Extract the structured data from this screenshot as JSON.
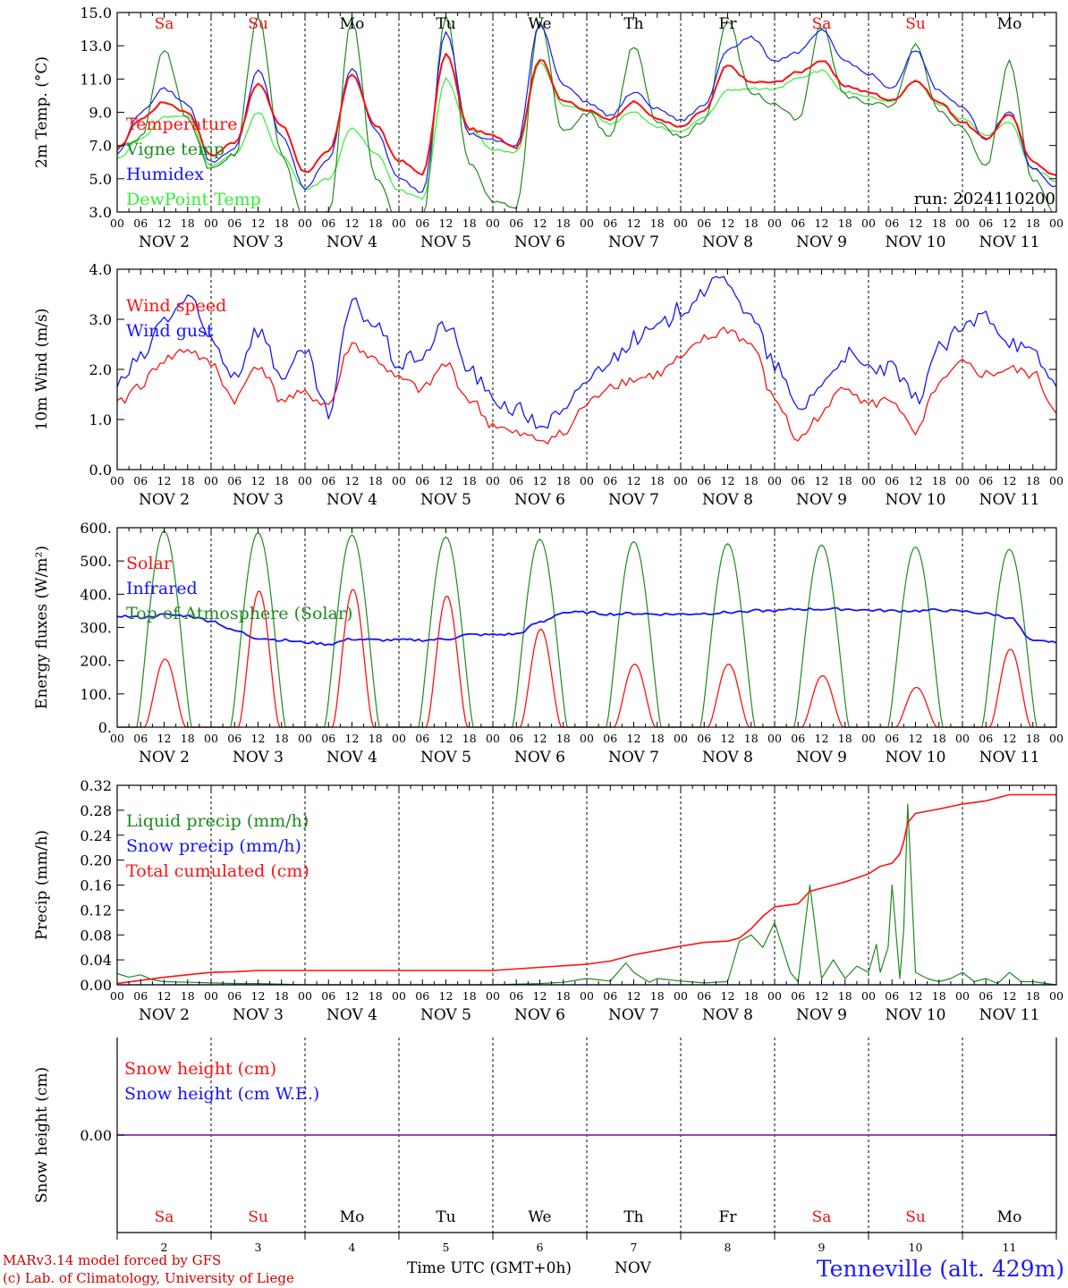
{
  "colors": {
    "red": "#ff1010",
    "darkgreen": "#1f8a1f",
    "blue": "#1414ff",
    "lightgreen": "#33ee33",
    "purple": "#8b2bb0",
    "satsun": "#ee1010",
    "weekday": "#000000"
  },
  "days": [
    {
      "abbr": "Sa",
      "weekend": true,
      "date": "NOV  2",
      "num": "2"
    },
    {
      "abbr": "Su",
      "weekend": true,
      "date": "NOV  3",
      "num": "3"
    },
    {
      "abbr": "Mo",
      "weekend": false,
      "date": "NOV  4",
      "num": "4"
    },
    {
      "abbr": "Tu",
      "weekend": false,
      "date": "NOV  5",
      "num": "5"
    },
    {
      "abbr": "We",
      "weekend": false,
      "date": "NOV  6",
      "num": "6"
    },
    {
      "abbr": "Th",
      "weekend": false,
      "date": "NOV  7",
      "num": "7"
    },
    {
      "abbr": "Fr",
      "weekend": false,
      "date": "NOV  8",
      "num": "8"
    },
    {
      "abbr": "Sa",
      "weekend": true,
      "date": "NOV  9",
      "num": "9"
    },
    {
      "abbr": "Su",
      "weekend": true,
      "date": "NOV 10",
      "num": "10"
    },
    {
      "abbr": "Mo",
      "weekend": false,
      "date": "NOV 11",
      "num": "11"
    }
  ],
  "hour_ticks": [
    "00",
    "06",
    "12",
    "18"
  ],
  "run_label": "run: 2024110200",
  "footer": {
    "credit1": "MARv3.14 model forced by GFS",
    "credit2": "(c) Lab. of Climatology, University of Liege",
    "xtitle": "Time UTC (GMT+0h)",
    "month": "NOV",
    "location": "Tenneville (alt. 429m)"
  },
  "chart_data": [
    {
      "type": "line",
      "ylabel": "2m Temp. (°C)",
      "ylim": [
        3.0,
        15.0
      ],
      "yticks": [
        "3.0",
        "5.0",
        "7.0",
        "9.0",
        "11.0",
        "13.0",
        "15.0"
      ],
      "x_hours": [
        0,
        6,
        12,
        18,
        24,
        30,
        36,
        42,
        48,
        54,
        60,
        66,
        72,
        78,
        84,
        90,
        96,
        102,
        108,
        114,
        120,
        126,
        132,
        138,
        144,
        150,
        156,
        162,
        168,
        174,
        180,
        186,
        192,
        198,
        204,
        210,
        216,
        222,
        228,
        234,
        240
      ],
      "series": [
        {
          "name": "Temperature",
          "color": "red",
          "values": [
            6.8,
            8.6,
            9.6,
            9.0,
            6.4,
            7.2,
            10.7,
            8.2,
            5.4,
            6.6,
            11.3,
            8.2,
            6.1,
            5.3,
            12.5,
            8.0,
            7.6,
            6.9,
            12.2,
            9.7,
            9.1,
            8.6,
            9.6,
            8.6,
            8.1,
            9.1,
            11.8,
            10.8,
            10.8,
            11.4,
            12.1,
            10.6,
            10.2,
            9.7,
            10.9,
            9.6,
            8.4,
            7.4,
            8.9,
            6.0,
            5.2
          ]
        },
        {
          "name": "Vigne temp",
          "color": "darkgreen",
          "values": [
            6.8,
            7.5,
            12.8,
            8.6,
            5.6,
            6.4,
            14.8,
            6.5,
            2.5,
            3.0,
            14.6,
            5.0,
            2.6,
            2.6,
            14.8,
            6.0,
            3.6,
            3.3,
            14.5,
            7.8,
            9.0,
            7.6,
            13.0,
            8.3,
            7.5,
            8.5,
            14.5,
            10.2,
            9.5,
            8.5,
            14.2,
            10.0,
            9.6,
            9.3,
            13.0,
            9.0,
            8.1,
            5.7,
            12.0,
            5.0,
            2.8
          ]
        },
        {
          "name": "Humidex",
          "color": "blue",
          "values": [
            6.5,
            9.0,
            10.4,
            9.5,
            6.0,
            6.8,
            11.5,
            7.6,
            4.4,
            6.2,
            11.7,
            7.9,
            5.0,
            4.2,
            13.9,
            7.7,
            7.3,
            7.0,
            14.3,
            10.7,
            9.6,
            8.8,
            10.2,
            9.2,
            8.5,
            9.4,
            12.8,
            13.5,
            12.1,
            12.6,
            13.9,
            12.1,
            11.3,
            10.4,
            12.7,
            10.3,
            9.3,
            7.4,
            9.0,
            5.6,
            4.5
          ]
        },
        {
          "name": "DewPoint Temp",
          "color": "lightgreen",
          "values": [
            6.2,
            7.4,
            8.7,
            8.8,
            5.8,
            6.4,
            9.0,
            6.4,
            4.4,
            5.0,
            8.0,
            6.6,
            4.3,
            3.8,
            11.0,
            8.0,
            6.7,
            6.6,
            12.0,
            9.4,
            9.1,
            8.3,
            9.0,
            8.1,
            7.8,
            8.7,
            10.3,
            10.4,
            10.4,
            11.1,
            11.5,
            10.2,
            9.9,
            9.6,
            10.9,
            9.5,
            8.6,
            7.6,
            8.4,
            5.6,
            4.9
          ]
        }
      ]
    },
    {
      "type": "line",
      "ylabel": "10m Wind (m/s)",
      "ylim": [
        0.0,
        4.0
      ],
      "yticks": [
        "0.0",
        "1.0",
        "2.0",
        "3.0",
        "4.0"
      ],
      "x_hours": [
        0,
        6,
        12,
        18,
        24,
        30,
        36,
        42,
        48,
        54,
        60,
        66,
        72,
        78,
        84,
        90,
        96,
        102,
        108,
        114,
        120,
        126,
        132,
        138,
        144,
        150,
        156,
        162,
        168,
        174,
        180,
        186,
        192,
        198,
        204,
        210,
        216,
        222,
        228,
        234,
        240
      ],
      "series": [
        {
          "name": "Wind speed",
          "color": "red",
          "values": [
            1.3,
            1.7,
            2.2,
            2.4,
            2.1,
            1.4,
            2.1,
            1.4,
            1.5,
            1.3,
            2.5,
            2.2,
            1.8,
            1.6,
            2.1,
            1.4,
            0.9,
            0.7,
            0.6,
            0.7,
            1.3,
            1.7,
            1.8,
            1.9,
            2.2,
            2.6,
            2.8,
            2.5,
            1.4,
            0.6,
            1.1,
            1.7,
            1.3,
            1.4,
            0.7,
            1.7,
            2.1,
            1.9,
            2.0,
            1.9,
            1.2
          ]
        },
        {
          "name": "Wind gust",
          "color": "blue",
          "values": [
            1.7,
            2.2,
            3.0,
            3.4,
            2.6,
            1.9,
            2.8,
            1.9,
            2.3,
            1.1,
            3.3,
            2.9,
            2.1,
            2.3,
            2.9,
            2.0,
            1.4,
            1.2,
            0.9,
            1.1,
            1.8,
            2.2,
            2.6,
            2.8,
            3.2,
            3.6,
            3.8,
            3.0,
            2.1,
            1.2,
            1.7,
            2.3,
            2.0,
            2.0,
            1.4,
            2.4,
            2.8,
            3.1,
            2.6,
            2.3,
            1.7
          ]
        }
      ]
    },
    {
      "type": "line",
      "ylabel": "Energy fluxes (W/m²)",
      "ylim": [
        0,
        600
      ],
      "yticks": [
        "0.",
        "100.",
        "200.",
        "300.",
        "400.",
        "500.",
        "600."
      ],
      "day_peaks_hour": [
        12,
        36,
        60,
        84,
        108,
        132,
        156,
        180,
        204,
        228
      ],
      "series": [
        {
          "name": "Solar",
          "color": "red",
          "day_peaks": [
            205,
            410,
            415,
            395,
            295,
            190,
            190,
            155,
            120,
            235
          ]
        },
        {
          "name": "Infrared",
          "color": "blue",
          "x_hours": [
            0,
            6,
            12,
            18,
            24,
            30,
            36,
            42,
            48,
            54,
            60,
            66,
            72,
            78,
            84,
            90,
            96,
            102,
            108,
            114,
            120,
            126,
            132,
            138,
            144,
            150,
            156,
            162,
            168,
            174,
            180,
            186,
            192,
            198,
            204,
            210,
            216,
            222,
            228,
            234,
            240
          ],
          "values": [
            335,
            330,
            338,
            335,
            320,
            290,
            268,
            262,
            255,
            250,
            265,
            262,
            262,
            262,
            265,
            278,
            278,
            280,
            315,
            345,
            345,
            340,
            342,
            340,
            340,
            342,
            345,
            350,
            350,
            355,
            355,
            355,
            352,
            350,
            350,
            352,
            348,
            342,
            330,
            258,
            258
          ]
        },
        {
          "name": "Top of Atmosphere (Solar)",
          "color": "darkgreen",
          "day_peaks": [
            590,
            585,
            578,
            572,
            565,
            558,
            552,
            548,
            542,
            535
          ]
        }
      ]
    },
    {
      "type": "line",
      "ylabel": "Precip (mm/h)",
      "ylim": [
        0.0,
        0.32
      ],
      "yticks": [
        "0.00",
        "0.04",
        "0.08",
        "0.12",
        "0.16",
        "0.20",
        "0.24",
        "0.28",
        "0.32"
      ],
      "series": [
        {
          "name": "Liquid precip (mm/h)",
          "color": "darkgreen",
          "x_hours": [
            0,
            3,
            6,
            9,
            12,
            18,
            24,
            30,
            36,
            48,
            60,
            72,
            84,
            96,
            108,
            114,
            120,
            126,
            130,
            132,
            136,
            138,
            144,
            150,
            156,
            159,
            162,
            165,
            168,
            171,
            172,
            174,
            177,
            180,
            183,
            186,
            189,
            192,
            194,
            195,
            197,
            198,
            200,
            201,
            202,
            204,
            207,
            210,
            213,
            216,
            219,
            222,
            225,
            228,
            231,
            234,
            240
          ],
          "values": [
            0.018,
            0.012,
            0.016,
            0.008,
            0.005,
            0.004,
            0.003,
            0.002,
            0.002,
            0.0,
            0.0,
            0.0,
            0.0,
            0.0,
            0.002,
            0.004,
            0.01,
            0.006,
            0.035,
            0.02,
            0.004,
            0.01,
            0.006,
            0.003,
            0.005,
            0.07,
            0.08,
            0.06,
            0.1,
            0.04,
            0.02,
            0.005,
            0.16,
            0.01,
            0.04,
            0.01,
            0.03,
            0.02,
            0.065,
            0.02,
            0.06,
            0.16,
            0.01,
            0.09,
            0.29,
            0.02,
            0.01,
            0.005,
            0.01,
            0.02,
            0.005,
            0.01,
            0.002,
            0.02,
            0.005,
            0.005,
            0.0
          ]
        },
        {
          "name": "Snow precip (mm/h)",
          "color": "blue",
          "x_hours": [
            0,
            240
          ],
          "values": [
            0.0,
            0.0
          ]
        },
        {
          "name": "Total cumulated (cm)",
          "color": "red",
          "x_hours": [
            0,
            12,
            24,
            30,
            36,
            48,
            96,
            108,
            120,
            126,
            132,
            138,
            144,
            150,
            156,
            159,
            162,
            165,
            168,
            174,
            177,
            180,
            186,
            192,
            195,
            198,
            200,
            201,
            202,
            204,
            210,
            216,
            222,
            228,
            234,
            240
          ],
          "values": [
            0.002,
            0.012,
            0.02,
            0.021,
            0.023,
            0.023,
            0.023,
            0.028,
            0.033,
            0.038,
            0.048,
            0.055,
            0.062,
            0.068,
            0.07,
            0.075,
            0.09,
            0.11,
            0.125,
            0.13,
            0.15,
            0.155,
            0.165,
            0.178,
            0.19,
            0.195,
            0.21,
            0.23,
            0.26,
            0.275,
            0.282,
            0.29,
            0.295,
            0.305,
            0.305,
            0.305
          ]
        }
      ]
    },
    {
      "type": "line",
      "ylabel": "Snow height (cm)",
      "yticks": [
        "0.00"
      ],
      "series": [
        {
          "name": "Snow height (cm)",
          "color": "red",
          "x_hours": [
            0,
            240
          ],
          "values": [
            0.0,
            0.0
          ]
        },
        {
          "name": "Snow height (cm W.E.)",
          "color": "blue",
          "x_hours": [
            0,
            240
          ],
          "values": [
            0.0,
            0.0
          ]
        }
      ]
    }
  ]
}
